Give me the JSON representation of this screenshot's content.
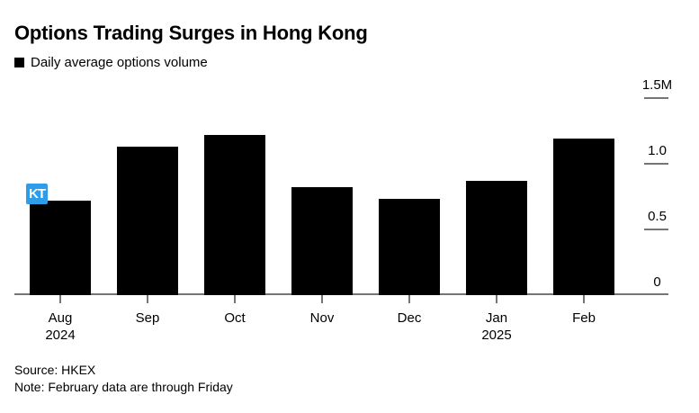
{
  "chart_data": {
    "type": "bar",
    "title": "Options Trading Surges in Hong Kong",
    "legend": {
      "label": "Daily average options volume",
      "swatch_color": "#000000"
    },
    "x_labels": [
      {
        "month": "Aug",
        "year": "2024"
      },
      {
        "month": "Sep",
        "year": ""
      },
      {
        "month": "Oct",
        "year": ""
      },
      {
        "month": "Nov",
        "year": ""
      },
      {
        "month": "Dec",
        "year": ""
      },
      {
        "month": "Jan",
        "year": "2025"
      },
      {
        "month": "Feb",
        "year": ""
      }
    ],
    "values_millions": [
      0.72,
      1.13,
      1.22,
      0.82,
      0.73,
      0.87,
      1.19
    ],
    "unit": "M",
    "ylim": [
      0,
      1.5
    ],
    "y_ticks": [
      {
        "label": "1.5M",
        "value": 1.5
      },
      {
        "label": "1.0",
        "value": 1.0
      },
      {
        "label": "0.5",
        "value": 0.5
      },
      {
        "label": "0",
        "value": 0
      }
    ],
    "bar_color": "#000000",
    "axis_color": "#757575",
    "grid": false,
    "legend_position": "top-left",
    "y_axis_side": "right"
  },
  "footer": {
    "source": "Source: HKEX",
    "note": "Note: February data are through Friday"
  },
  "overlay": {
    "cursor_label": "KT",
    "color": "#2e9ce8"
  }
}
